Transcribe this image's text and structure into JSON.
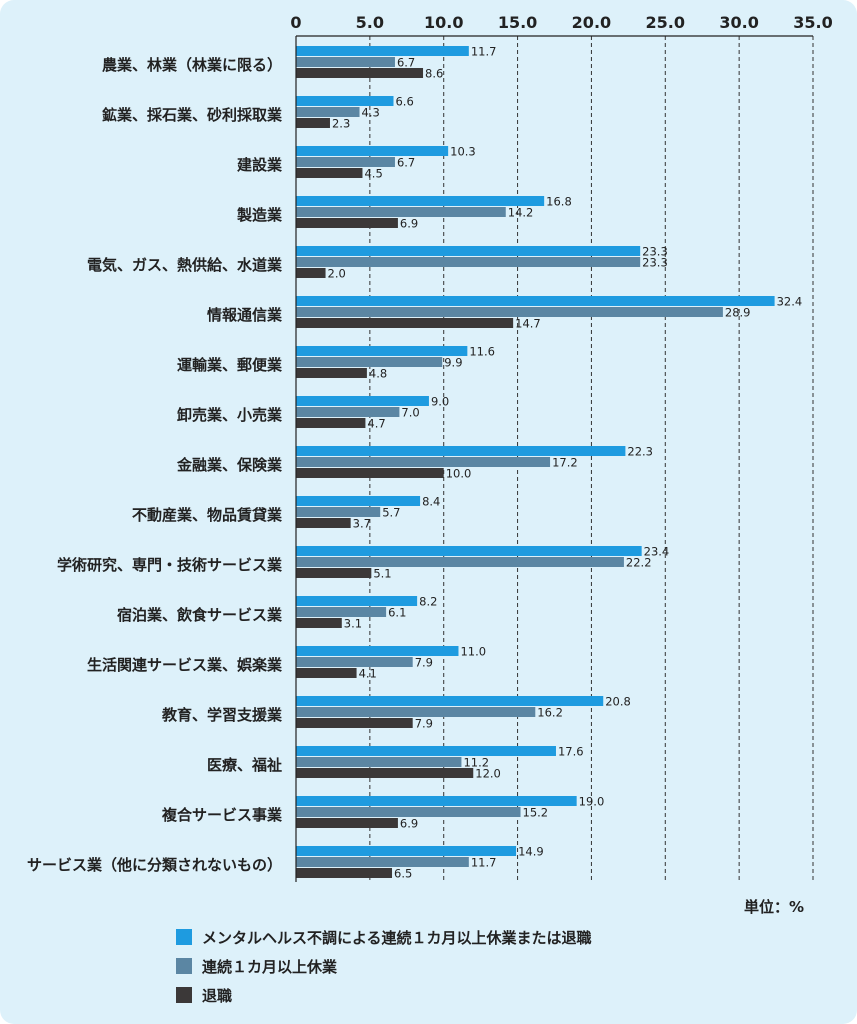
{
  "chart_data": {
    "type": "bar",
    "orientation": "horizontal",
    "xlim": [
      0,
      35
    ],
    "ticks": [
      "0",
      "5.0",
      "10.0",
      "15.0",
      "20.0",
      "25.0",
      "30.0",
      "35.0"
    ],
    "tick_values": [
      0,
      5,
      10,
      15,
      20,
      25,
      30,
      35
    ],
    "unit_label": "単位：%",
    "grid": "vertical dashed",
    "legend_position": "bottom",
    "categories": [
      "農業、林業（林業に限る）",
      "鉱業、採石業、砂利採取業",
      "建設業",
      "製造業",
      "電気、ガス、熱供給、水道業",
      "情報通信業",
      "運輸業、郵便業",
      "卸売業、小売業",
      "金融業、保険業",
      "不動産業、物品賃貸業",
      "学術研究、専門・技術サービス業",
      "宿泊業、飲食サービス業",
      "生活関連サービス業、娯楽業",
      "教育、学習支援業",
      "医療、福祉",
      "複合サービス事業",
      "サービス業（他に分類されないもの）"
    ],
    "series": [
      {
        "name": "メンタルヘルス不調による連続１カ月以上休業または退職",
        "color": "#1e9be0",
        "values": [
          11.7,
          6.6,
          10.3,
          16.8,
          23.3,
          32.4,
          11.6,
          9.0,
          22.3,
          8.4,
          23.4,
          8.2,
          11.0,
          20.8,
          17.6,
          19.0,
          14.9
        ],
        "labels": [
          "11.7",
          "6.6",
          "10.3",
          "16.8",
          "23.3",
          "32.4",
          "11.6",
          "9.0",
          "22.3",
          "8.4",
          "23.4",
          "8.2",
          "11.0",
          "20.8",
          "17.6",
          "19.0",
          "14.9"
        ]
      },
      {
        "name": "連続１カ月以上休業",
        "color": "#5b86a3",
        "values": [
          6.7,
          4.3,
          6.7,
          14.2,
          23.3,
          28.9,
          9.9,
          7.0,
          17.2,
          5.7,
          22.2,
          6.1,
          7.9,
          16.2,
          11.2,
          15.2,
          11.7
        ],
        "labels": [
          "6.7",
          "4.3",
          "6.7",
          "14.2",
          "23.3",
          "28.9",
          "9.9",
          "7.0",
          "17.2",
          "5.7",
          "22.2",
          "6.1",
          "7.9",
          "16.2",
          "11.2",
          "15.2",
          "11.7"
        ]
      },
      {
        "name": "退職",
        "color": "#3b3838",
        "values": [
          8.6,
          2.3,
          4.5,
          6.9,
          2.0,
          14.7,
          4.8,
          4.7,
          10.0,
          3.7,
          5.1,
          3.1,
          4.1,
          7.9,
          12.0,
          6.9,
          6.5
        ],
        "labels": [
          "8.6",
          "2.3",
          "4.5",
          "6.9",
          "2.0",
          "14.7",
          "4.8",
          "4.7",
          "10.0",
          "3.7",
          "5.1",
          "3.1",
          "4.1",
          "7.9",
          "12.0",
          "6.9",
          "6.5"
        ]
      }
    ]
  }
}
